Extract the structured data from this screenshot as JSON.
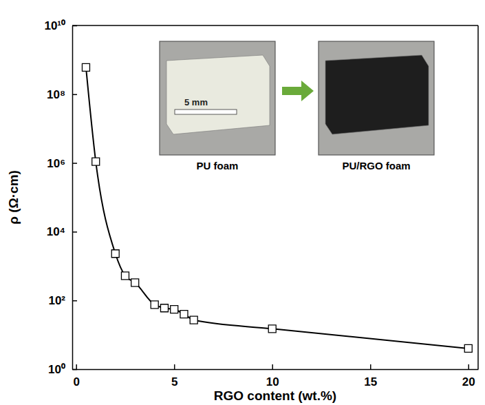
{
  "chart_data": {
    "type": "line",
    "xlabel": "RGO content (wt.%)",
    "ylabel": "ρ (Ω·cm)",
    "x": [
      0.5,
      1,
      2,
      2.5,
      3,
      4,
      4.5,
      5,
      5.5,
      6,
      10,
      20
    ],
    "values": [
      600000000,
      1100000,
      2300,
      520,
      330,
      75,
      60,
      55,
      40,
      27,
      15,
      4
    ],
    "color": "#000000",
    "marker": "square",
    "log": "y",
    "xlim": [
      -0.2,
      20.5
    ],
    "ylim": [
      1,
      10000000000
    ],
    "xticks": [
      0,
      5,
      10,
      15,
      20
    ],
    "yticks": [
      {
        "value": 1,
        "label": "10⁰"
      },
      {
        "value": 100,
        "label": "10²"
      },
      {
        "value": 10000,
        "label": "10⁴"
      },
      {
        "value": 1000000,
        "label": "10⁶"
      },
      {
        "value": 100000000,
        "label": "10⁸"
      },
      {
        "value": 10000000000,
        "label": "10¹⁰"
      }
    ],
    "annotations": [
      "PU foam",
      "PU/RGO foam",
      "5 mm"
    ]
  }
}
